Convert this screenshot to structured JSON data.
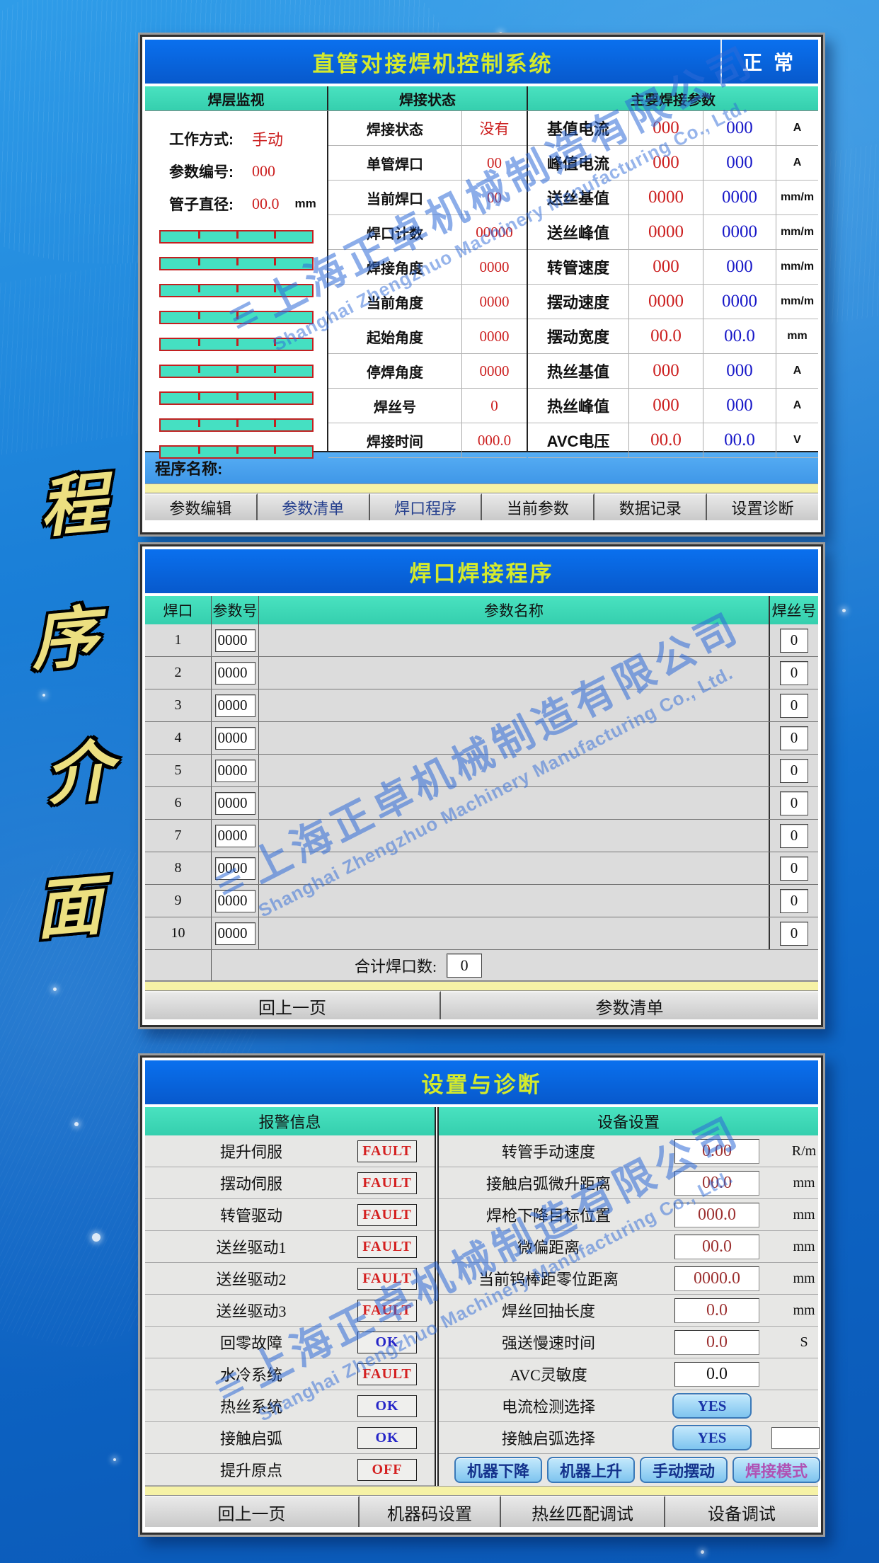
{
  "side_caption": {
    "chars": [
      "程",
      "序",
      "介",
      "面"
    ]
  },
  "watermark": {
    "logo": "≡",
    "cn": "上海正卓机械制造有限公司",
    "en": "Shanghai Zhengzhuo Machinery Manufacturing Co., Ltd."
  },
  "colors": {
    "title_bar": "#0a70ee",
    "title_text": "#d4ea2c",
    "teal_header": "#3ed8b4",
    "value_red": "#cc2020",
    "value_blue": "#1818c8",
    "maroon": "#9c3030",
    "bar_fill": "#45e0c2",
    "bar_border": "#c22020",
    "yes_button": "#7ec4ef"
  },
  "panel1": {
    "title": "直管对接焊机控制系统",
    "status": "正常",
    "monitor": {
      "header": "焊层监视",
      "fields": [
        {
          "label": "工作方式:",
          "value": "手动",
          "unit": ""
        },
        {
          "label": "参数编号:",
          "value": "000",
          "unit": ""
        },
        {
          "label": "管子直径:",
          "value": "00.0",
          "unit": "mm"
        }
      ],
      "bars": [
        [
          25,
          50,
          75
        ],
        [
          25,
          50,
          75
        ],
        [
          25,
          50,
          75
        ],
        [
          25,
          50
        ],
        [
          25,
          50,
          75
        ],
        [
          25,
          50,
          75
        ],
        [
          25,
          50,
          75
        ],
        [
          25,
          50,
          75
        ],
        [
          25,
          50,
          75
        ]
      ]
    },
    "status_section": {
      "header": "焊接状态",
      "rows": [
        {
          "label": "焊接状态",
          "value": "没有"
        },
        {
          "label": "单管焊口",
          "value": "00"
        },
        {
          "label": "当前焊口",
          "value": "00"
        },
        {
          "label": "焊口计数",
          "value": "00000"
        },
        {
          "label": "焊接角度",
          "value": "0000"
        },
        {
          "label": "当前角度",
          "value": "0000"
        },
        {
          "label": "起始角度",
          "value": "0000"
        },
        {
          "label": "停焊角度",
          "value": "0000"
        },
        {
          "label": "焊丝号",
          "value": "0"
        },
        {
          "label": "焊接时间",
          "value": "000.0"
        }
      ]
    },
    "params_section": {
      "header": "主要焊接参数",
      "rows": [
        {
          "label": "基值电流",
          "set": "000",
          "actual": "000",
          "unit": "A"
        },
        {
          "label": "峰值电流",
          "set": "000",
          "actual": "000",
          "unit": "A"
        },
        {
          "label": "送丝基值",
          "set": "0000",
          "actual": "0000",
          "unit": "mm/m"
        },
        {
          "label": "送丝峰值",
          "set": "0000",
          "actual": "0000",
          "unit": "mm/m"
        },
        {
          "label": "转管速度",
          "set": "000",
          "actual": "000",
          "unit": "mm/m"
        },
        {
          "label": "摆动速度",
          "set": "0000",
          "actual": "0000",
          "unit": "mm/m"
        },
        {
          "label": "摆动宽度",
          "set": "00.0",
          "actual": "00.0",
          "unit": "mm"
        },
        {
          "label": "热丝基值",
          "set": "000",
          "actual": "000",
          "unit": "A"
        },
        {
          "label": "热丝峰值",
          "set": "000",
          "actual": "000",
          "unit": "A"
        },
        {
          "label": "AVC电压",
          "set": "00.0",
          "actual": "00.0",
          "unit": "V"
        }
      ]
    },
    "program_name_label": "程序名称:",
    "buttons": [
      {
        "label": "参数编辑",
        "accent": false
      },
      {
        "label": "参数清单",
        "accent": true
      },
      {
        "label": "焊口程序",
        "accent": true
      },
      {
        "label": "当前参数",
        "accent": false
      },
      {
        "label": "数据记录",
        "accent": false
      },
      {
        "label": "设置诊断",
        "accent": false
      }
    ]
  },
  "panel2": {
    "title": "焊口焊接程序",
    "columns": {
      "joint": "焊口",
      "param_no": "参数号",
      "param_name": "参数名称",
      "wire_no": "焊丝号"
    },
    "rows": [
      {
        "no": "1",
        "param": "0000",
        "name": "",
        "wire": "0"
      },
      {
        "no": "2",
        "param": "0000",
        "name": "",
        "wire": "0"
      },
      {
        "no": "3",
        "param": "0000",
        "name": "",
        "wire": "0"
      },
      {
        "no": "4",
        "param": "0000",
        "name": "",
        "wire": "0"
      },
      {
        "no": "5",
        "param": "0000",
        "name": "",
        "wire": "0"
      },
      {
        "no": "6",
        "param": "0000",
        "name": "",
        "wire": "0"
      },
      {
        "no": "7",
        "param": "0000",
        "name": "",
        "wire": "0"
      },
      {
        "no": "8",
        "param": "0000",
        "name": "",
        "wire": "0"
      },
      {
        "no": "9",
        "param": "0000",
        "name": "",
        "wire": "0"
      },
      {
        "no": "10",
        "param": "0000",
        "name": "",
        "wire": "0"
      }
    ],
    "total_label": "合计焊口数:",
    "total_value": "0",
    "buttons": [
      {
        "label": "回上一页"
      },
      {
        "label": "参数清单"
      }
    ]
  },
  "panel3": {
    "title": "设置与诊断",
    "alarm": {
      "header": "报警信息",
      "rows": [
        {
          "label": "提升伺服",
          "status": "FAULT"
        },
        {
          "label": "摆动伺服",
          "status": "FAULT"
        },
        {
          "label": "转管驱动",
          "status": "FAULT"
        },
        {
          "label": "送丝驱动1",
          "status": "FAULT"
        },
        {
          "label": "送丝驱动2",
          "status": "FAULT"
        },
        {
          "label": "送丝驱动3",
          "status": "FAULT"
        },
        {
          "label": "回零故障",
          "status": "OK"
        },
        {
          "label": "水冷系统",
          "status": "FAULT"
        },
        {
          "label": "热丝系统",
          "status": "OK"
        },
        {
          "label": "接触启弧",
          "status": "OK"
        },
        {
          "label": "提升原点",
          "status": "OFF"
        }
      ]
    },
    "settings": {
      "header": "设备设置",
      "rows": [
        {
          "label": "转管手动速度",
          "value": "0.00",
          "unit": "R/m",
          "value_color": "maroon"
        },
        {
          "label": "接触启弧微升距离",
          "value": "00.0",
          "unit": "mm",
          "value_color": "maroon"
        },
        {
          "label": "焊枪下降目标位置",
          "value": "000.0",
          "unit": "mm",
          "value_color": "maroon"
        },
        {
          "label": "微偏距离",
          "value": "00.0",
          "unit": "mm",
          "value_color": "maroon"
        },
        {
          "label": "当前钨棒距零位距离",
          "value": "0000.0",
          "unit": "mm",
          "value_color": "maroon"
        },
        {
          "label": "焊丝回抽长度",
          "value": "0.0",
          "unit": "mm",
          "value_color": "maroon"
        },
        {
          "label": "强送慢速时间",
          "value": "0.0",
          "unit": "S",
          "value_color": "maroon"
        },
        {
          "label": "AVC灵敏度",
          "value": "0.0",
          "unit": "",
          "value_color": "black"
        }
      ],
      "toggles": [
        {
          "label": "电流检测选择",
          "value": "YES",
          "extra_box": false
        },
        {
          "label": "接触启弧选择",
          "value": "YES",
          "extra_box": true
        }
      ],
      "action_buttons": [
        {
          "label": "机器下降",
          "style": "blue"
        },
        {
          "label": "机器上升",
          "style": "blue"
        },
        {
          "label": "手动摆动",
          "style": "blue"
        },
        {
          "label": "焊接模式",
          "style": "purple"
        }
      ]
    },
    "bottom_buttons": [
      {
        "label": "回上一页"
      },
      {
        "label": "机器码设置"
      },
      {
        "label": "热丝匹配调试"
      },
      {
        "label": "设备调试"
      }
    ]
  }
}
